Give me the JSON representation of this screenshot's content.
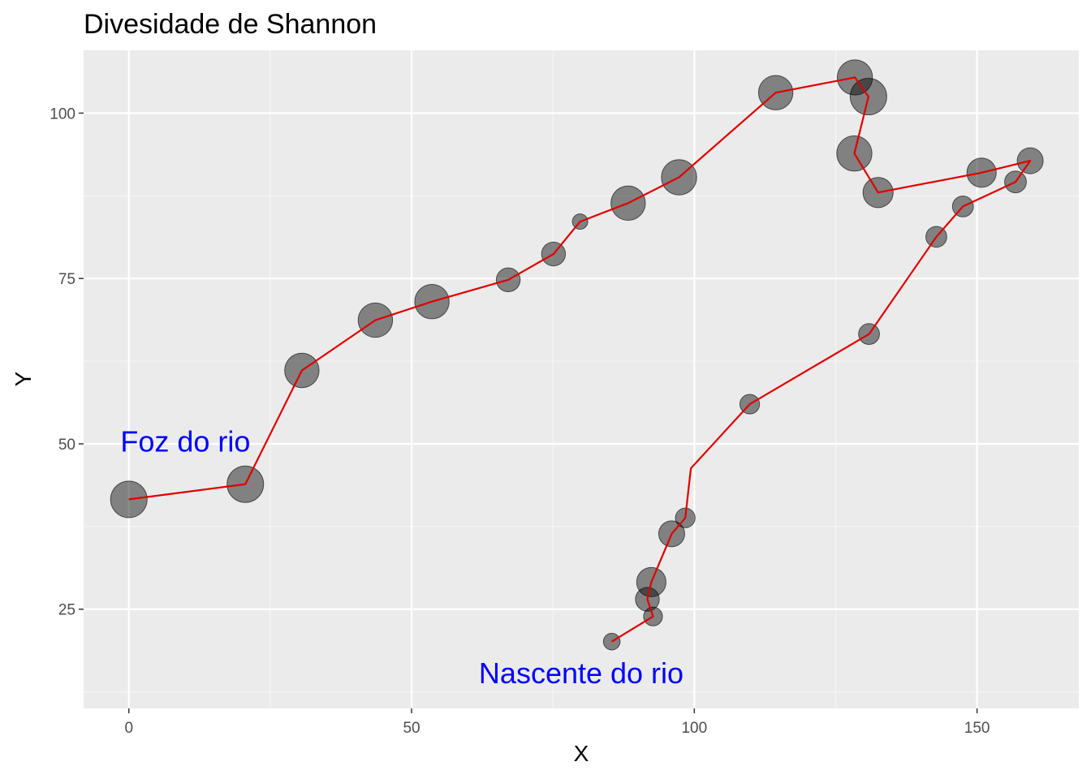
{
  "chart_data": {
    "type": "scatter",
    "title": "Divesidade de Shannon",
    "xlabel": "X",
    "ylabel": "Y",
    "xlim": [
      -8,
      168
    ],
    "ylim": [
      10,
      109.5
    ],
    "x_ticks": [
      0,
      50,
      100,
      150
    ],
    "y_ticks": [
      25,
      50,
      75,
      100
    ],
    "grid": true,
    "colors": {
      "panel_background": "#ebebeb",
      "grid_major": "#ffffff",
      "grid_minor": "#f5f5f5",
      "path_line": "#e00000",
      "points": "#000000",
      "annotation": "#0000ff"
    },
    "path": [
      {
        "x": 0,
        "y": 41.6
      },
      {
        "x": 20.6,
        "y": 43.9
      },
      {
        "x": 30.6,
        "y": 61.1
      },
      {
        "x": 43.6,
        "y": 68.7
      },
      {
        "x": 53.6,
        "y": 71.5
      },
      {
        "x": 67.1,
        "y": 74.8
      },
      {
        "x": 75.1,
        "y": 78.7
      },
      {
        "x": 79.8,
        "y": 83.6
      },
      {
        "x": 88.3,
        "y": 86.4
      },
      {
        "x": 97.3,
        "y": 90.3
      },
      {
        "x": 114.4,
        "y": 103.1
      },
      {
        "x": 128.4,
        "y": 105.4
      },
      {
        "x": 130.8,
        "y": 102.5
      },
      {
        "x": 128.3,
        "y": 93.9
      },
      {
        "x": 132.5,
        "y": 88.0
      },
      {
        "x": 150.8,
        "y": 91.0
      },
      {
        "x": 159.4,
        "y": 92.8
      },
      {
        "x": 156.8,
        "y": 89.6
      },
      {
        "x": 147.5,
        "y": 85.9
      },
      {
        "x": 142.8,
        "y": 81.3
      },
      {
        "x": 130.9,
        "y": 66.6
      },
      {
        "x": 109.8,
        "y": 56.0
      },
      {
        "x": 99.4,
        "y": 46.3
      },
      {
        "x": 98.4,
        "y": 38.8
      },
      {
        "x": 96.0,
        "y": 36.4
      },
      {
        "x": 92.4,
        "y": 29.1
      },
      {
        "x": 91.7,
        "y": 26.5
      },
      {
        "x": 92.7,
        "y": 23.9
      },
      {
        "x": 85.4,
        "y": 20.1
      }
    ],
    "size_relative": [
      0.75,
      0.75,
      0.7,
      0.7,
      0.7,
      0.45,
      0.45,
      0.25,
      0.7,
      0.72,
      0.7,
      0.72,
      0.75,
      0.72,
      0.6,
      0.58,
      0.5,
      0.4,
      0.38,
      0.38,
      0.38,
      0.35,
      null,
      0.35,
      0.5,
      0.58,
      0.45,
      0.33,
      0.28
    ],
    "annotations": [
      {
        "text": "Foz do rio",
        "x": 10,
        "y": 50
      },
      {
        "text": "Nascente do rio",
        "x": 80,
        "y": 15
      }
    ]
  }
}
